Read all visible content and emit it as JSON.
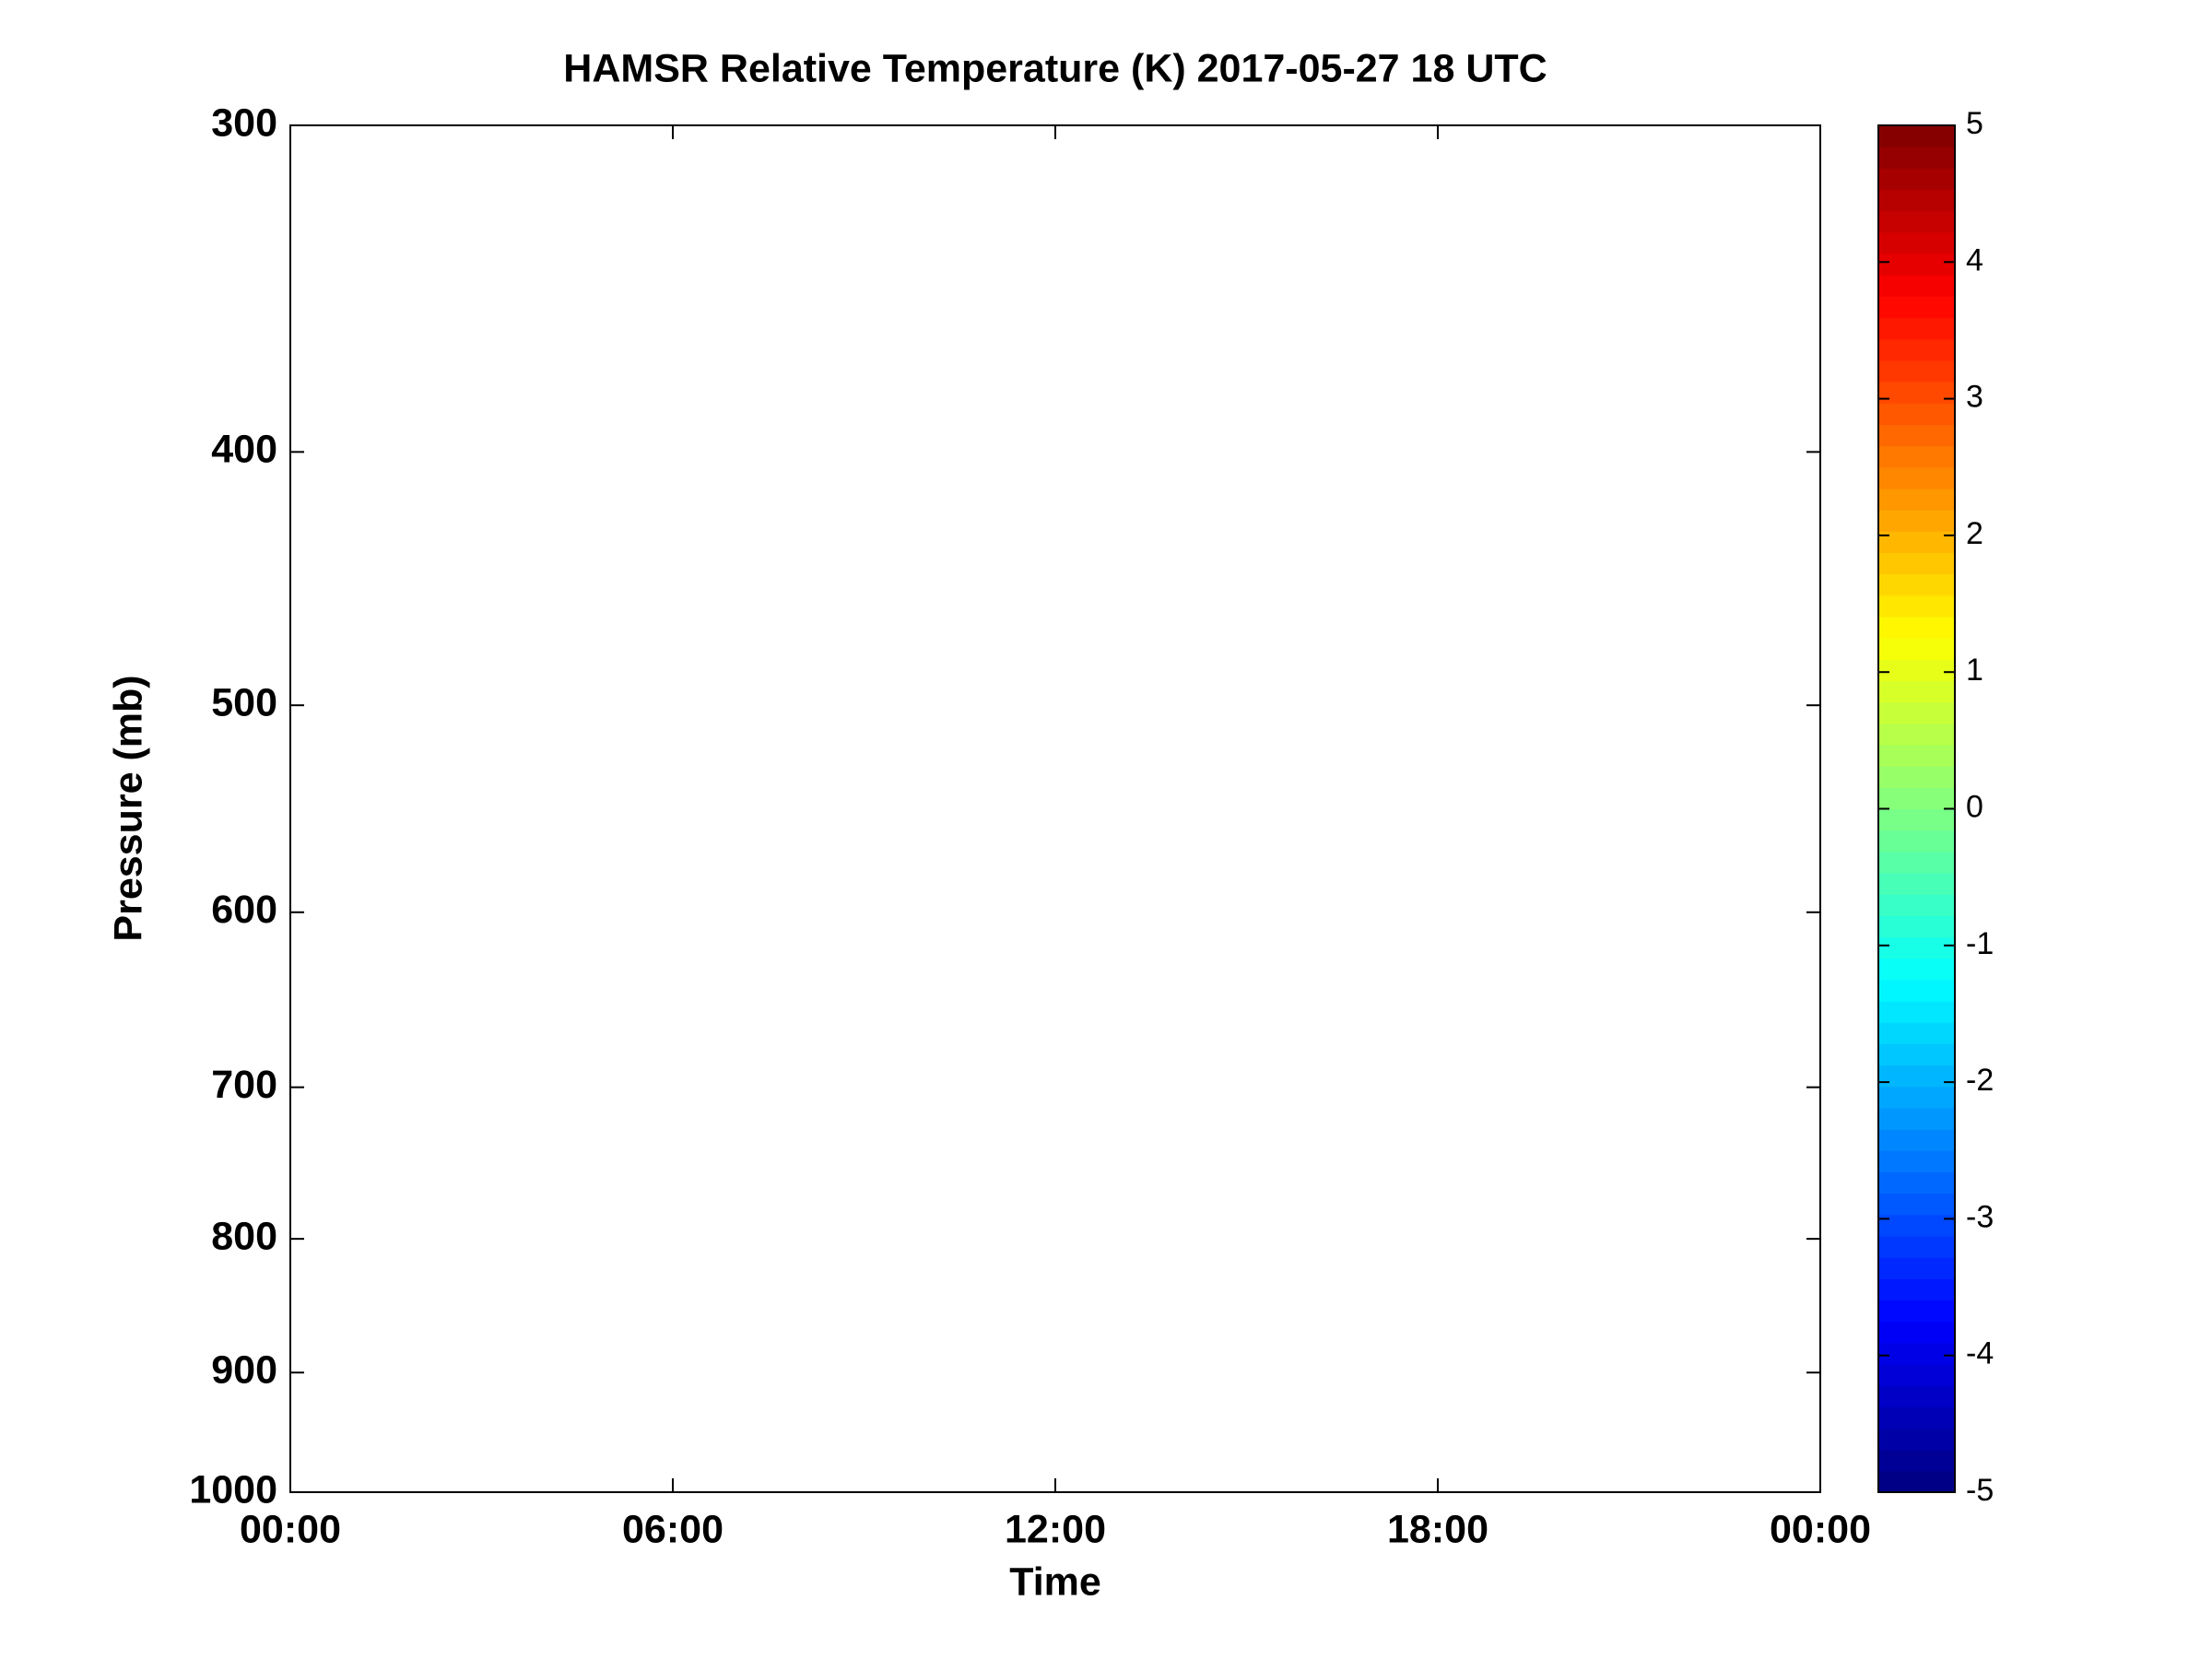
{
  "chart_data": {
    "type": "heatmap",
    "title": "HAMSR  Relative Temperature (K) 2017-05-27 18 UTC",
    "xlabel": "Time",
    "ylabel": "Pressure (mb)",
    "xlim": [
      0,
      24
    ],
    "xticks": [
      {
        "value": 0,
        "label": "00:00"
      },
      {
        "value": 6,
        "label": "06:00"
      },
      {
        "value": 12,
        "label": "12:00"
      },
      {
        "value": 18,
        "label": "18:00"
      },
      {
        "value": 24,
        "label": "00:00"
      }
    ],
    "ylim": [
      1000,
      300
    ],
    "yscale": "log",
    "yticks": [
      300,
      400,
      500,
      600,
      700,
      800,
      900,
      1000
    ],
    "colorbar": {
      "colormap": "jet",
      "levels": 64,
      "lim": [
        -5,
        5
      ],
      "ticks": [
        -5,
        -4,
        -3,
        -2,
        -1,
        0,
        1,
        2,
        3,
        4,
        5
      ]
    }
  }
}
